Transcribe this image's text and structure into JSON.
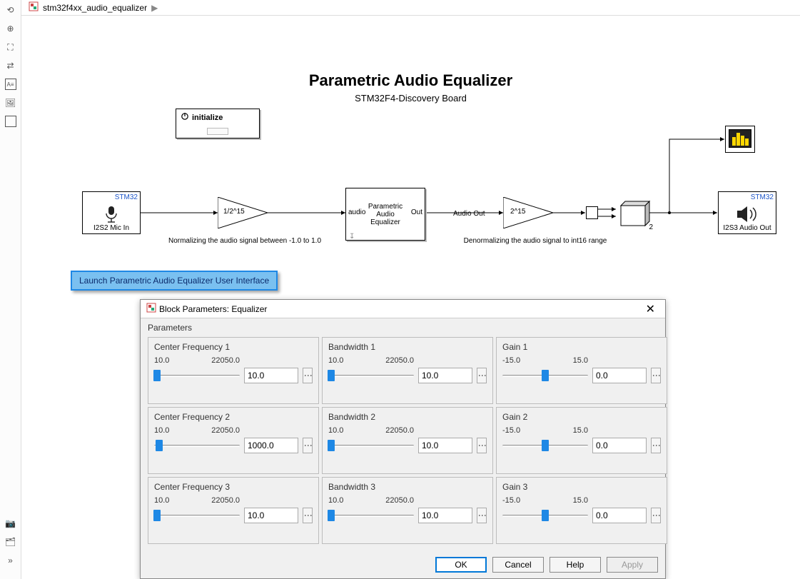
{
  "breadcrumb": {
    "model_name": "stm32f4xx_audio_equalizer",
    "arrow": "▶"
  },
  "toolbar_icons": [
    "back",
    "zoom-in",
    "fit",
    "swap",
    "text-box",
    "image",
    "rect",
    "spacer",
    "camera",
    "hierarchy",
    "expand"
  ],
  "diagram": {
    "title": "Parametric Audio Equalizer",
    "subtitle": "STM32F4-Discovery Board",
    "initialize_block": {
      "label": "initialize"
    },
    "mic_block": {
      "label": "I2S2 Mic In",
      "badge": "STM32"
    },
    "gain1": {
      "label": "1/2^15",
      "caption": "Normalizing the audio signal between -1.0 to 1.0"
    },
    "eq_block": {
      "title": "Parametric\nAudio\nEqualizer",
      "port_in": "audio",
      "port_out": "Out",
      "wire_label": "Audio Out"
    },
    "gain2": {
      "label": "2^15",
      "caption": "Denormalizing the audio signal to int16 range"
    },
    "audio_out": {
      "label": "I2S3 Audio Out",
      "badge": "STM32"
    },
    "mux_label": "2",
    "launch_button": "Launch Parametric Audio Equalizer User Interface"
  },
  "dialog": {
    "title": "Block Parameters: Equalizer",
    "section": "Parameters",
    "params": [
      {
        "title": "Center Frequency 1",
        "min": "10.0",
        "max": "22050.0",
        "value": "10.0",
        "handle_pct": 3
      },
      {
        "title": "Bandwidth 1",
        "min": "10.0",
        "max": "22050.0",
        "value": "10.0",
        "handle_pct": 3
      },
      {
        "title": "Gain 1",
        "min": "-15.0",
        "max": "15.0",
        "value": "0.0",
        "handle_pct": 50
      },
      {
        "title": "Center Frequency 2",
        "min": "10.0",
        "max": "22050.0",
        "value": "1000.0",
        "handle_pct": 6
      },
      {
        "title": "Bandwidth 2",
        "min": "10.0",
        "max": "22050.0",
        "value": "10.0",
        "handle_pct": 3
      },
      {
        "title": "Gain 2",
        "min": "-15.0",
        "max": "15.0",
        "value": "0.0",
        "handle_pct": 50
      },
      {
        "title": "Center Frequency 3",
        "min": "10.0",
        "max": "22050.0",
        "value": "10.0",
        "handle_pct": 3
      },
      {
        "title": "Bandwidth 3",
        "min": "10.0",
        "max": "22050.0",
        "value": "10.0",
        "handle_pct": 3
      },
      {
        "title": "Gain 3",
        "min": "-15.0",
        "max": "15.0",
        "value": "0.0",
        "handle_pct": 50
      }
    ],
    "buttons": {
      "ok": "OK",
      "cancel": "Cancel",
      "help": "Help",
      "apply": "Apply"
    }
  },
  "styling": {
    "colors": {
      "accent_blue": "#1e88e5",
      "launch_bg": "#7ac0f0",
      "launch_border": "#1e88e5",
      "stm_text": "#1e56c8",
      "scope_fill": "#ffd700",
      "dialog_bg": "#f0f0f0"
    }
  }
}
